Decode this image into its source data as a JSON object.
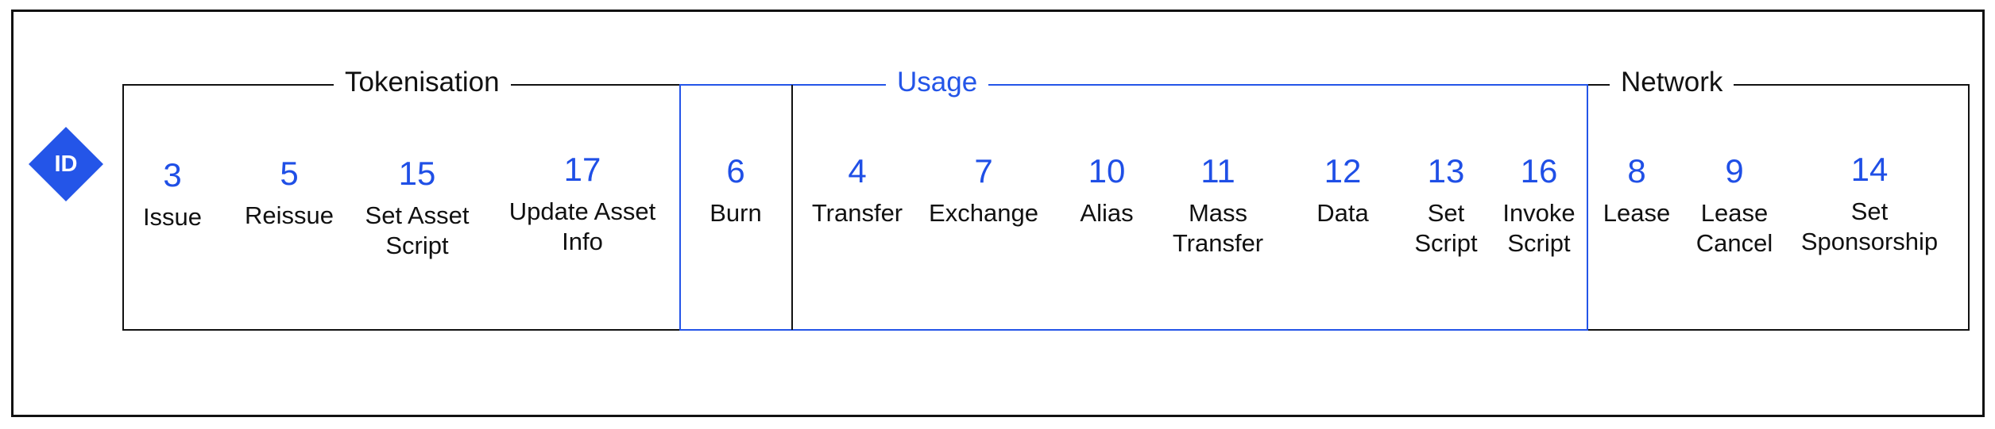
{
  "logo": {
    "text": "ID",
    "color": "#2455e8"
  },
  "sections": {
    "tokenisation": {
      "label": "Tokenisation"
    },
    "usage": {
      "label": "Usage",
      "color": "#2455e8"
    },
    "network": {
      "label": "Network"
    }
  },
  "items": [
    {
      "num": "3",
      "name": "Issue"
    },
    {
      "num": "5",
      "name": "Reissue"
    },
    {
      "num": "15",
      "name": "Set Asset\nScript"
    },
    {
      "num": "17",
      "name": "Update Asset\nInfo"
    },
    {
      "num": "6",
      "name": "Burn"
    },
    {
      "num": "4",
      "name": "Transfer"
    },
    {
      "num": "7",
      "name": "Exchange"
    },
    {
      "num": "10",
      "name": "Alias"
    },
    {
      "num": "11",
      "name": "Mass\nTransfer"
    },
    {
      "num": "12",
      "name": "Data"
    },
    {
      "num": "13",
      "name": "Set\nScript"
    },
    {
      "num": "16",
      "name": "Invoke\nScript"
    },
    {
      "num": "8",
      "name": "Lease"
    },
    {
      "num": "9",
      "name": "Lease\nCancel"
    },
    {
      "num": "14",
      "name": "Set\nSponsorship"
    }
  ]
}
